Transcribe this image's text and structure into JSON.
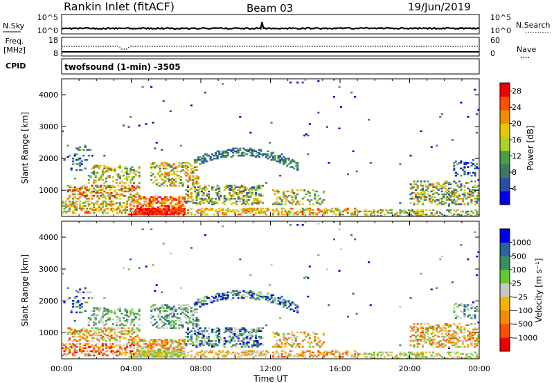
{
  "header": {
    "station": "Rankin Inlet (fitACF)",
    "beam": "Beam 03",
    "date": "19/Jun/2019"
  },
  "nsky_panel": {
    "left_label": "N.Sky",
    "left_ticks": [
      "10^5",
      "10^0"
    ],
    "right_ticks": [
      "10^5",
      "10^0"
    ],
    "right_label": "N.Search"
  },
  "freq_panel": {
    "left_label_1": "Freq.",
    "left_label_2": "[MHz]",
    "left_ticks": [
      "18",
      "8"
    ],
    "right_ticks": [
      "60",
      "0"
    ],
    "right_label": "Nave"
  },
  "cpid": {
    "label": "CPID",
    "value": "twofsound (1-min) -3505"
  },
  "colors": {
    "power": [
      "#0000e6",
      "#2850a8",
      "#3c7a64",
      "#46a046",
      "#aad228",
      "#e6c800",
      "#f08c00",
      "#ff5000",
      "#f00000"
    ],
    "velocity": [
      "#f00000",
      "#ff5000",
      "#f08c00",
      "#f5b400",
      "#c8c8c0",
      "#64c832",
      "#3c8c64",
      "#286496",
      "#0000e6"
    ]
  },
  "chart_data": [
    {
      "type": "heatmap",
      "variable": "Power",
      "ylabel": "Slant Range [km]",
      "xlabel": "",
      "ylim": [
        180,
        4500
      ],
      "xlim_hours": [
        0,
        24
      ],
      "y_ticks": [
        "1000",
        "2000",
        "3000",
        "4000"
      ],
      "x_ticks": [
        "00:00",
        "04:00",
        "08:00",
        "12:00",
        "16:00",
        "20:00",
        "00:00"
      ],
      "colorbar": {
        "label": "Power [dB]",
        "ticks": [
          "4",
          "8",
          "12",
          "16",
          "20",
          "24",
          "28"
        ],
        "range": [
          0,
          30
        ]
      }
    },
    {
      "type": "heatmap",
      "variable": "Velocity",
      "ylabel": "Slant Range [km]",
      "xlabel": "Time UT",
      "ylim": [
        180,
        4500
      ],
      "xlim_hours": [
        0,
        24
      ],
      "y_ticks": [
        "1000",
        "2000",
        "3000",
        "4000"
      ],
      "x_ticks": [
        "00:00",
        "04:00",
        "08:00",
        "12:00",
        "16:00",
        "20:00",
        "00:00"
      ],
      "colorbar": {
        "label": "Velocity [m s⁻¹]",
        "ticks": [
          "1000",
          "500",
          "100",
          "25",
          "−25",
          "−100",
          "−500",
          "−1000"
        ]
      }
    }
  ]
}
